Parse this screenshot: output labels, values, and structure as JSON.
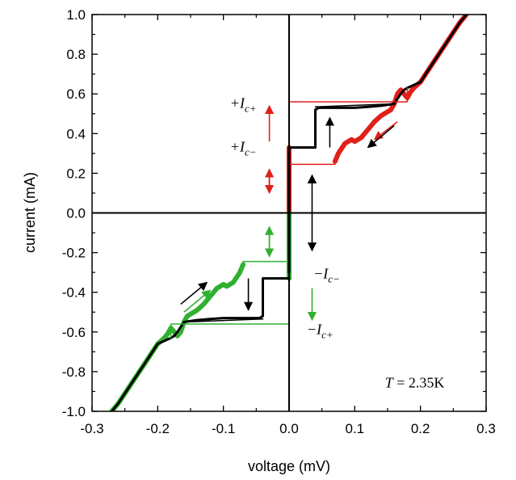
{
  "chart_data": {
    "type": "line",
    "title": "",
    "xlabel": "voltage (mV)",
    "ylabel": "current (mA)",
    "xlim": [
      -0.3,
      0.3
    ],
    "ylim": [
      -1.0,
      1.0
    ],
    "xticks": [
      -0.3,
      -0.2,
      -0.1,
      0.0,
      0.1,
      0.2,
      0.3
    ],
    "xtick_labels": [
      "-0.3",
      "-0.2",
      "-0.1",
      "0.0",
      "0.1",
      "0.2",
      "0.3"
    ],
    "yticks": [
      -1.0,
      -0.8,
      -0.6,
      -0.4,
      -0.2,
      0.0,
      0.2,
      0.4,
      0.6,
      0.8,
      1.0
    ],
    "ytick_labels": [
      "-1.0",
      "-0.8",
      "-0.6",
      "-0.4",
      "-0.2",
      "0.0",
      "0.2",
      "0.4",
      "0.6",
      "0.8",
      "1.0"
    ],
    "grid": false,
    "colors": {
      "sweep_up": "#e0201a",
      "sweep_down": "#30b030",
      "retrap": "#000000"
    },
    "series": [
      {
        "color": "#e0201a",
        "width": 6,
        "x": [
          0.07,
          0.075,
          0.085,
          0.095,
          0.1,
          0.11,
          0.12,
          0.13,
          0.14,
          0.15,
          0.155,
          0.16,
          0.165,
          0.17,
          0.175,
          0.18,
          0.185,
          0.19,
          0.2,
          0.21,
          0.22,
          0.23,
          0.24,
          0.25,
          0.26,
          0.27
        ],
        "y": [
          0.26,
          0.3,
          0.35,
          0.37,
          0.36,
          0.38,
          0.42,
          0.46,
          0.49,
          0.51,
          0.52,
          0.55,
          0.6,
          0.62,
          0.6,
          0.58,
          0.61,
          0.63,
          0.66,
          0.71,
          0.76,
          0.81,
          0.86,
          0.91,
          0.96,
          1.0
        ]
      },
      {
        "color": "#e0201a",
        "width": 6,
        "x": [
          0.0,
          0.0
        ],
        "y": [
          0.0,
          0.33
        ]
      },
      {
        "color": "#30b030",
        "width": 6,
        "x": [
          -0.07,
          -0.075,
          -0.085,
          -0.095,
          -0.1,
          -0.11,
          -0.12,
          -0.13,
          -0.14,
          -0.15,
          -0.155,
          -0.16,
          -0.165,
          -0.17,
          -0.175,
          -0.18,
          -0.185,
          -0.19,
          -0.2,
          -0.21,
          -0.22,
          -0.23,
          -0.24,
          -0.25,
          -0.26,
          -0.27
        ],
        "y": [
          -0.26,
          -0.3,
          -0.35,
          -0.37,
          -0.36,
          -0.38,
          -0.42,
          -0.46,
          -0.49,
          -0.51,
          -0.52,
          -0.55,
          -0.6,
          -0.62,
          -0.6,
          -0.58,
          -0.61,
          -0.63,
          -0.66,
          -0.71,
          -0.76,
          -0.81,
          -0.86,
          -0.91,
          -0.96,
          -1.0
        ]
      },
      {
        "color": "#30b030",
        "width": 6,
        "x": [
          0.0,
          0.0
        ],
        "y": [
          0.0,
          -0.33
        ]
      },
      {
        "color": "#000000",
        "width": 3,
        "x": [
          0.0,
          0.0
        ],
        "y": [
          -0.3,
          0.33
        ]
      },
      {
        "color": "#000000",
        "width": 3,
        "x": [
          0.0,
          0.04,
          0.04,
          0.04,
          0.04,
          0.045,
          0.06,
          0.08,
          0.1,
          0.12,
          0.14,
          0.16,
          0.17,
          0.175,
          0.18,
          0.2,
          0.22,
          0.24,
          0.26,
          0.27
        ],
        "y": [
          0.33,
          0.33,
          0.4,
          0.45,
          0.52,
          0.53,
          0.53,
          0.53,
          0.53,
          0.535,
          0.54,
          0.55,
          0.6,
          0.62,
          0.63,
          0.66,
          0.76,
          0.86,
          0.96,
          1.0
        ]
      },
      {
        "color": "#000000",
        "width": 3,
        "x": [
          0.0,
          -0.04,
          -0.04,
          -0.04,
          -0.04,
          -0.045,
          -0.06,
          -0.08,
          -0.1,
          -0.12,
          -0.14,
          -0.16,
          -0.17,
          -0.175,
          -0.18,
          -0.2,
          -0.22,
          -0.24,
          -0.26,
          -0.27
        ],
        "y": [
          -0.33,
          -0.33,
          -0.4,
          -0.45,
          -0.52,
          -0.53,
          -0.53,
          -0.53,
          -0.53,
          -0.535,
          -0.54,
          -0.55,
          -0.6,
          -0.62,
          -0.63,
          -0.66,
          -0.76,
          -0.86,
          -0.96,
          -1.0
        ]
      },
      {
        "color": "#e0201a",
        "width": 1.5,
        "x": [
          0.0,
          0.0,
          0.18,
          0.18
        ],
        "y": [
          0.33,
          0.56,
          0.56,
          0.63
        ]
      },
      {
        "color": "#e0201a",
        "width": 1.5,
        "x": [
          0.0,
          0.07
        ],
        "y": [
          0.245,
          0.245
        ]
      },
      {
        "color": "#30b030",
        "width": 1.5,
        "x": [
          0.0,
          0.0,
          -0.18,
          -0.18
        ],
        "y": [
          -0.33,
          -0.56,
          -0.56,
          -0.63
        ]
      },
      {
        "color": "#30b030",
        "width": 1.5,
        "x": [
          0.0,
          -0.07
        ],
        "y": [
          -0.245,
          -0.245
        ]
      },
      {
        "color": "#000000",
        "width": 1.5,
        "x": [
          0.04,
          0.16
        ],
        "y": [
          0.535,
          0.55
        ]
      },
      {
        "color": "#000000",
        "width": 1.5,
        "x": [
          -0.04,
          -0.16
        ],
        "y": [
          -0.535,
          -0.55
        ]
      }
    ],
    "arrows": [
      {
        "color": "#e0201a",
        "x1": -0.03,
        "y1": 0.36,
        "x2": -0.03,
        "y2": 0.54
      },
      {
        "color": "#e0201a",
        "x1": -0.03,
        "y1": 0.22,
        "x2": -0.03,
        "y2": 0.1
      },
      {
        "color": "#e0201a",
        "x1": -0.03,
        "y1": 0.1,
        "x2": -0.03,
        "y2": 0.22
      },
      {
        "color": "#e0201a",
        "x1": 0.165,
        "y1": 0.46,
        "x2": 0.13,
        "y2": 0.37
      },
      {
        "color": "#000000",
        "x1": 0.16,
        "y1": 0.44,
        "x2": 0.12,
        "y2": 0.33
      },
      {
        "color": "#000000",
        "x1": 0.062,
        "y1": 0.33,
        "x2": 0.062,
        "y2": 0.48
      },
      {
        "color": "#000000",
        "x1": 0.035,
        "y1": 0.18,
        "x2": 0.035,
        "y2": 0.19
      },
      {
        "color": "#000000",
        "x1": 0.035,
        "y1": 0.0,
        "x2": 0.035,
        "y2": 0.19
      },
      {
        "color": "#000000",
        "x1": 0.035,
        "y1": 0.0,
        "x2": 0.035,
        "y2": -0.19
      },
      {
        "color": "#30b030",
        "x1": -0.03,
        "y1": -0.08,
        "x2": -0.03,
        "y2": -0.22
      },
      {
        "color": "#30b030",
        "x1": -0.03,
        "y1": -0.2,
        "x2": -0.03,
        "y2": -0.07
      },
      {
        "color": "#30b030",
        "x1": 0.035,
        "y1": -0.38,
        "x2": 0.035,
        "y2": -0.54
      },
      {
        "color": "#000000",
        "x1": -0.062,
        "y1": -0.33,
        "x2": -0.062,
        "y2": -0.49
      },
      {
        "color": "#000000",
        "x1": -0.165,
        "y1": -0.46,
        "x2": -0.125,
        "y2": -0.35
      },
      {
        "color": "#30b030",
        "x1": -0.16,
        "y1": -0.5,
        "x2": -0.12,
        "y2": -0.39
      }
    ],
    "annotations": [
      {
        "text": "+I",
        "sub": "c+",
        "x": -0.09,
        "y": 0.53
      },
      {
        "text": "+I",
        "sub": "c−",
        "x": -0.09,
        "y": 0.31
      },
      {
        "text": "−I",
        "sub": "c−",
        "x": 0.037,
        "y": -0.33
      },
      {
        "text": "−I",
        "sub": "c+",
        "x": 0.027,
        "y": -0.61
      }
    ],
    "temperature_label": {
      "prefix": "T",
      "value": " = 2.35K",
      "x": 0.146,
      "y": -0.88
    }
  }
}
